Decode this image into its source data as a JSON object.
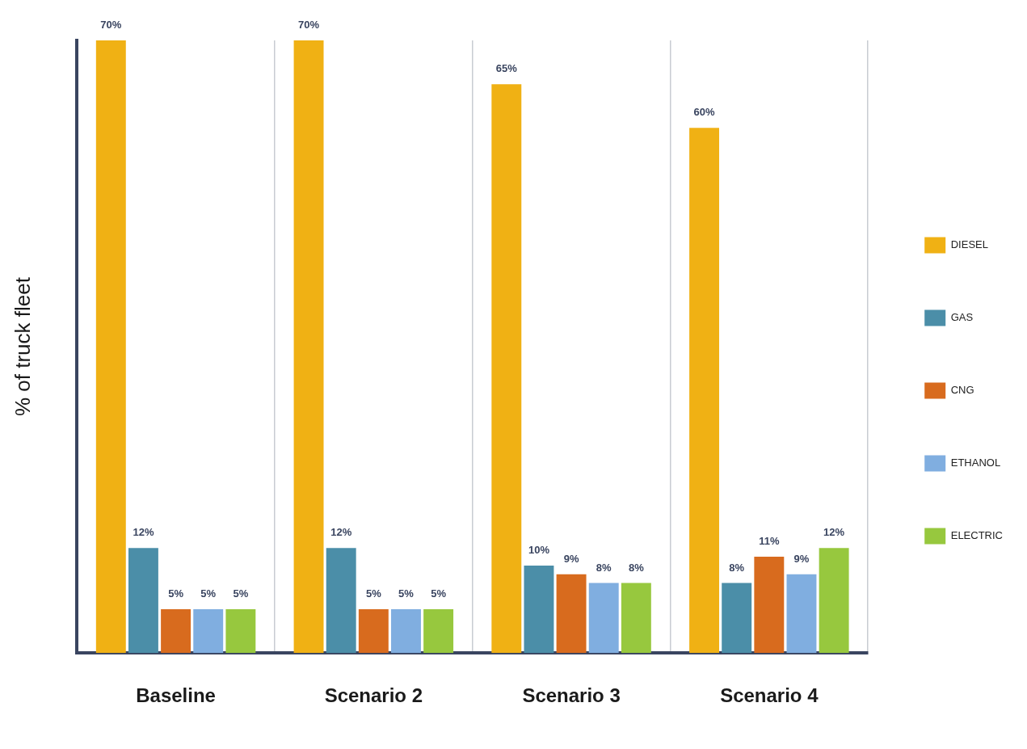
{
  "chart_data": {
    "type": "bar",
    "ylabel": "% of truck fleet",
    "categories": [
      "Baseline",
      "Scenario 2",
      "Scenario 3",
      "Scenario 4"
    ],
    "series": [
      {
        "name": "DIESEL",
        "color": "#f0b114",
        "values": [
          70,
          70,
          65,
          60
        ],
        "value_labels": [
          "70%",
          "70%",
          "65%",
          "60%"
        ]
      },
      {
        "name": "GAS",
        "color": "#4b8ea8",
        "values": [
          12,
          12,
          10,
          8
        ],
        "value_labels": [
          "12%",
          "12%",
          "10%",
          "8%"
        ]
      },
      {
        "name": "CNG",
        "color": "#d86b1e",
        "values": [
          5,
          5,
          9,
          11
        ],
        "value_labels": [
          "5%",
          "5%",
          "9%",
          "11%"
        ]
      },
      {
        "name": "ETHANOL",
        "color": "#80aee0",
        "values": [
          5,
          5,
          8,
          9
        ],
        "value_labels": [
          "5%",
          "5%",
          "8%",
          "9%"
        ]
      },
      {
        "name": "ELECTRIC",
        "color": "#97c83e",
        "values": [
          5,
          5,
          8,
          12
        ],
        "value_labels": [
          "5%",
          "5%",
          "8%",
          "12%"
        ]
      }
    ],
    "grid": "x",
    "legend": "right"
  }
}
